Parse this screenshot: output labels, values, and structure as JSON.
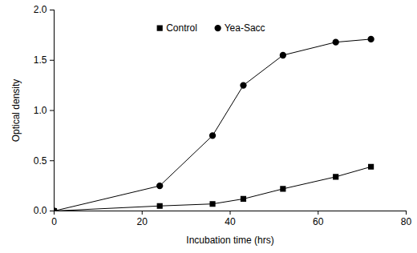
{
  "chart_data": {
    "type": "line",
    "x_label": "Incubation time (hrs)",
    "y_label": "Optical density",
    "x": [
      0,
      24,
      36,
      43,
      52,
      64,
      72
    ],
    "series": [
      {
        "name": "Control",
        "color": "#000000",
        "marker": "square",
        "values": [
          0,
          0.05,
          0.07,
          0.12,
          0.22,
          0.34,
          0.44
        ]
      },
      {
        "name": "Yea-Sacc",
        "color": "#000000",
        "marker": "circle",
        "values": [
          0,
          0.25,
          0.75,
          1.25,
          1.55,
          1.68,
          1.71
        ]
      }
    ],
    "xlim": [
      0,
      80
    ],
    "xticks": [
      0,
      20,
      40,
      60,
      80
    ],
    "ylim": [
      0,
      2
    ],
    "yticks": [
      {
        "value": 0,
        "label": "0.0"
      },
      {
        "value": 0.5,
        "label": "0.5"
      },
      {
        "value": 1,
        "label": "1.0"
      },
      {
        "value": 1.5,
        "label": "1.5"
      },
      {
        "value": 2,
        "label": "2.0"
      }
    ],
    "grid": false,
    "legend": "top"
  }
}
